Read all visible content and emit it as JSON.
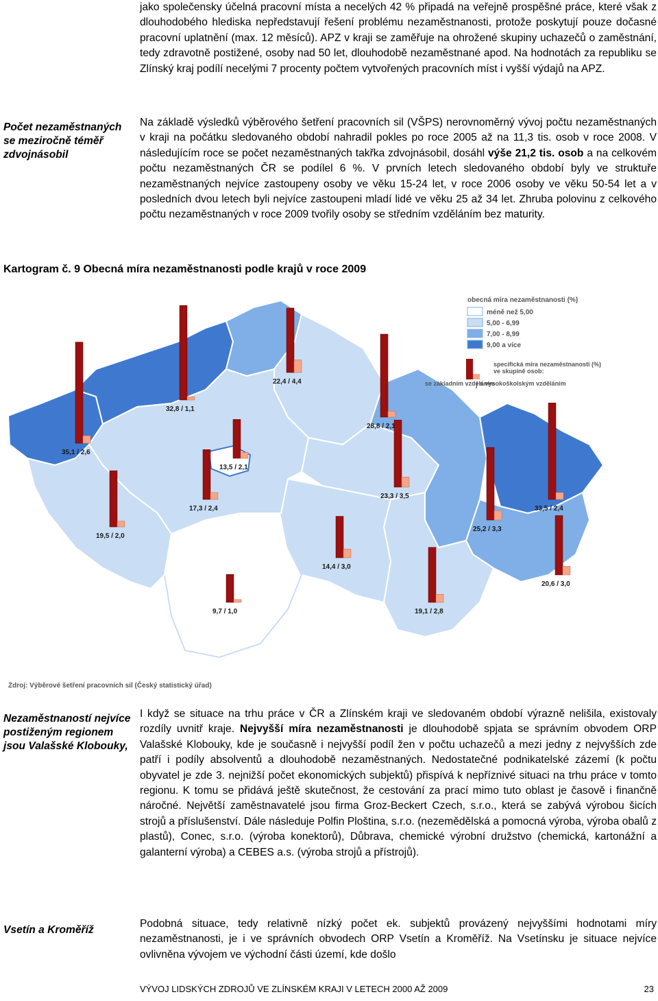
{
  "top": {
    "p1": "jako společensky účelná pracovní místa a necelých 42 % připadá na veřejně prospěšné práce, které však z dlouhodobého hlediska nepředstavují řešení problému nezaměstnanosti, protože poskytují pouze dočasné pracovní uplatnění (max. 12 měsíců). APZ v kraji se zaměřuje na ohrožené skupiny uchazečů o zaměstnání, tedy zdravotně postižené, osoby nad 50 let, dlouhodobě nezaměstnané apod. Na hodnotách za republiku se Zlínský kraj podílí necelými 7 procenty počtem vytvořených pracovních míst i vyšší výdajů na APZ."
  },
  "section1": {
    "side": "Počet nezaměstnaných se meziročně téměř zdvojnásobil",
    "p_a": "Na základě výsledků výběrového šetření pracovních sil (VŠPS) nerovnoměrný vývoj počtu nezaměstnaných v kraji na počátku sledovaného období nahradil pokles po roce 2005 až na 11,3 tis. osob v roce 2008. V následujícím roce se počet nezaměstnaných takřka zdvojnásobil, dosáhl ",
    "p_bold": "výše 21,2 tis. osob",
    "p_b": " a na celkovém počtu nezaměstnaných ČR se podílel 6 %. V prvních letech sledovaného období byly ve struktuře nezaměstnaných nejvíce zastoupeny osoby ve věku 15-24 let, v roce 2006 osoby ve věku 50-54 let a v posledních dvou letech byli nejvíce zastoupeni mladí lidé ve věku 25 až 34 let. Zhruba polovinu z celkového počtu nezaměstnaných v roce 2009 tvořily osoby se středním vzděláním bez maturity."
  },
  "map": {
    "title": "Kartogram č. 9 Obecná míra nezaměstnanosti podle krajů v roce 2009",
    "legend_title": "obecná míra nezaměstnanosti (%)",
    "legend_items": [
      {
        "label": "méně než 5,00",
        "color": "#ffffff"
      },
      {
        "label": "5,00 - 6,99",
        "color": "#c9def4"
      },
      {
        "label": "7,00 - 8,99",
        "color": "#7fafe6"
      },
      {
        "label": "9,00 a více",
        "color": "#3f79cf"
      }
    ],
    "legend2_title": "specifická míra nezaměstnanosti (%)",
    "legend2_sub": "ve skupině osob:",
    "legend2_left": "se základním vzděláním",
    "legend2_sep": "/",
    "legend2_right": "s vysokoškolským vzděláním",
    "source": "Zdroj: Výběrové šetření pracovních sil (Český statistický úřad)",
    "bar_colors": {
      "basic": "#9b1010",
      "univ": "#f4a58a"
    },
    "regions": [
      {
        "label": "32,8 / 1,1",
        "basic": 32.8,
        "univ": 1.1
      },
      {
        "label": "22,4 / 4,4",
        "basic": 22.4,
        "univ": 4.4
      },
      {
        "label": "28,8 / 2,1",
        "basic": 28.8,
        "univ": 2.1
      },
      {
        "label": "35,1 / 2,6",
        "basic": 35.1,
        "univ": 2.6
      },
      {
        "label": "13,5 / 2,1",
        "basic": 13.5,
        "univ": 2.1
      },
      {
        "label": "17,3 / 2,4",
        "basic": 17.3,
        "univ": 2.4
      },
      {
        "label": "23,3 / 3,5",
        "basic": 23.3,
        "univ": 3.5
      },
      {
        "label": "33,5 / 2,4",
        "basic": 33.5,
        "univ": 2.4
      },
      {
        "label": "19,5 / 2,0",
        "basic": 19.5,
        "univ": 2.0
      },
      {
        "label": "25,2 / 3,3",
        "basic": 25.2,
        "univ": 3.3
      },
      {
        "label": "14,4 / 3,0",
        "basic": 14.4,
        "univ": 3.0
      },
      {
        "label": "20,6 / 3,0",
        "basic": 20.6,
        "univ": 3.0
      },
      {
        "label": "9,7 / 1,0",
        "basic": 9.7,
        "univ": 1.0
      },
      {
        "label": "19,1 / 2,8",
        "basic": 19.1,
        "univ": 2.8
      }
    ]
  },
  "section2": {
    "side": "Nezaměstnaností nejvíce postiženým regionem jsou Valašské Klobouky,",
    "p_a": "I když se situace na trhu práce v ČR a Zlínském kraji ve sledovaném období výrazně nelišila, existovaly rozdíly uvnitř kraje. ",
    "p_bold": "Nejvyšší míra nezaměstnanosti",
    "p_b": " je dlouhodobě spjata se správním obvodem ORP Valašské Klobouky, kde je současně i nejvyšší podíl žen v počtu uchazečů a mezi jedny z nejvyšších zde patří i podíly absolventů a dlouhodobě nezaměstnaných. Nedostatečné podnikatelské zázemí (k počtu obyvatel je zde 3. nejnižší počet ekonomických subjektů) přispívá k nepříznivé situaci na trhu práce v tomto regionu. K tomu se přidává ještě skutečnost, že cestování za prací mimo tuto oblast je časově i finančně náročné. Největší zaměstnavatelé jsou firma Groz-Beckert Czech, s.r.o., která se zabývá výrobou šicích strojů a příslušenství. Dále následuje Polfin Ploština, s.r.o. (nezemědělská a pomocná výroba, výroba obalů z plastů), Conec, s.r.o. (výroba konektorů), Důbrava, chemické výrobní družstvo (chemická, kartonážní a galanterní výroba) a CEBES a.s. (výroba strojů a přístrojů)."
  },
  "section3": {
    "side": "Vsetín a Kroměříž",
    "p": "Podobná situace, tedy relativně nízký počet ek. subjektů provázený nejvyššími hodnotami míry nezaměstnanosti, je i ve správních obvodech ORP Vsetín a Kroměříž. Na Vsetínsku je situace nejvíce ovlivněna vývojem ve východní části území, kde došlo"
  },
  "footer": {
    "text": "VÝVOJ LIDSKÝCH ZDROJŮ VE ZLÍNSKÉM KRAJI V LETECH 2000 AŽ 2009",
    "page": "23"
  }
}
